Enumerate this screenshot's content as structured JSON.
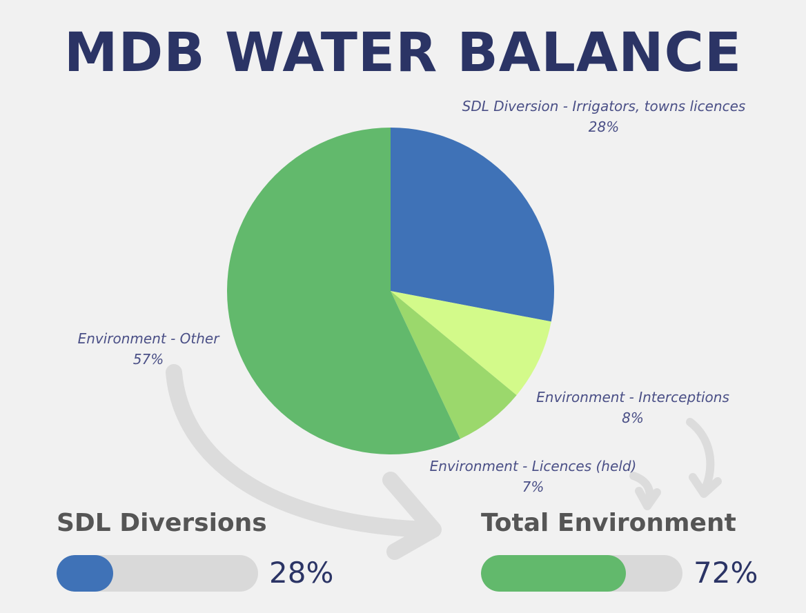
{
  "title": "MDB WATER BALANCE",
  "chart_data": {
    "type": "pie",
    "title": "MDB WATER BALANCE",
    "slices": [
      {
        "name": "SDL Diversion - Irrigators, towns licences",
        "value": 28,
        "label": "28%",
        "color": "#3f72b7"
      },
      {
        "name": "Environment - Interceptions",
        "value": 8,
        "label": "8%",
        "color": "#d3fa8a"
      },
      {
        "name": "Environment - Licences (held)",
        "value": 7,
        "label": "7%",
        "color": "#9bd86c"
      },
      {
        "name": "Environment - Other",
        "value": 57,
        "label": "57%",
        "color": "#62b96c"
      }
    ],
    "start_angle": "12 o'clock, clockwise"
  },
  "summary": {
    "sdl": {
      "label": "SDL Diversions",
      "value": 28,
      "text": "28%",
      "color": "#3f72b7"
    },
    "env": {
      "label": "Total Environment",
      "value": 72,
      "text": "72%",
      "color": "#62b96c"
    }
  }
}
